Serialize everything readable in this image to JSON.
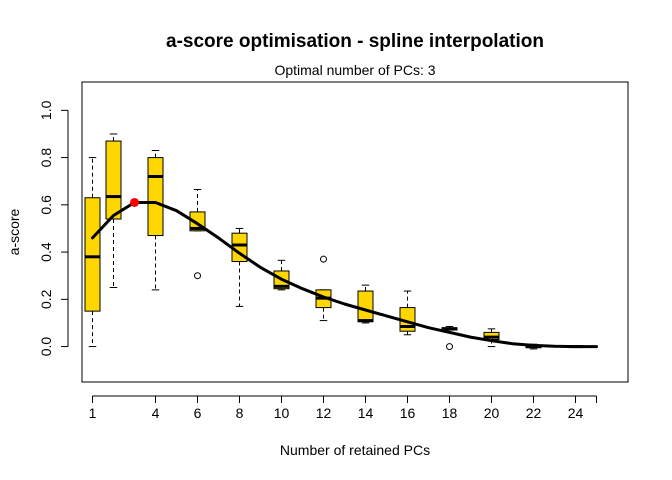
{
  "chart_data": {
    "type": "boxplot",
    "title": "a-score optimisation - spline interpolation",
    "subtitle": "Optimal number of PCs: 3",
    "xlabel": "Number of retained PCs",
    "ylabel": "a-score",
    "xlim": [
      0.5,
      26.5
    ],
    "ylim": [
      -0.15,
      1.12
    ],
    "x_ticks": [
      1,
      4,
      6,
      8,
      10,
      12,
      14,
      16,
      18,
      20,
      22,
      24
    ],
    "y_ticks": [
      0.0,
      0.2,
      0.4,
      0.6,
      0.8,
      1.0
    ],
    "y_tick_labels": [
      "0.0",
      "0.2",
      "0.4",
      "0.6",
      "0.8",
      "1.0"
    ],
    "box_color": "#FFD700",
    "boxes": [
      {
        "x": 1,
        "lower": 0.0,
        "q1": 0.15,
        "median": 0.38,
        "q3": 0.63,
        "upper": 0.8,
        "outliers": []
      },
      {
        "x": 2,
        "lower": 0.25,
        "q1": 0.54,
        "median": 0.635,
        "q3": 0.87,
        "upper": 0.9,
        "outliers": []
      },
      {
        "x": 4,
        "lower": 0.24,
        "q1": 0.47,
        "median": 0.72,
        "q3": 0.8,
        "upper": 0.83,
        "outliers": []
      },
      {
        "x": 6,
        "lower": 0.49,
        "q1": 0.49,
        "median": 0.5,
        "q3": 0.57,
        "upper": 0.665,
        "outliers": [
          0.3
        ]
      },
      {
        "x": 8,
        "lower": 0.17,
        "q1": 0.36,
        "median": 0.43,
        "q3": 0.48,
        "upper": 0.5,
        "outliers": []
      },
      {
        "x": 10,
        "lower": 0.24,
        "q1": 0.245,
        "median": 0.255,
        "q3": 0.32,
        "upper": 0.365,
        "outliers": []
      },
      {
        "x": 12,
        "lower": 0.11,
        "q1": 0.165,
        "median": 0.205,
        "q3": 0.24,
        "upper": 0.24,
        "outliers": [
          0.37
        ]
      },
      {
        "x": 14,
        "lower": 0.1,
        "q1": 0.105,
        "median": 0.11,
        "q3": 0.235,
        "upper": 0.26,
        "outliers": []
      },
      {
        "x": 16,
        "lower": 0.05,
        "q1": 0.065,
        "median": 0.085,
        "q3": 0.165,
        "upper": 0.235,
        "outliers": []
      },
      {
        "x": 18,
        "lower": 0.07,
        "q1": 0.07,
        "median": 0.075,
        "q3": 0.08,
        "upper": 0.085,
        "outliers": [
          0.0
        ]
      },
      {
        "x": 20,
        "lower": 0.0,
        "q1": 0.03,
        "median": 0.04,
        "q3": 0.06,
        "upper": 0.075,
        "outliers": []
      },
      {
        "x": 22,
        "lower": -0.01,
        "q1": -0.005,
        "median": 0.0,
        "q3": 0.005,
        "upper": 0.01,
        "outliers": []
      },
      {
        "x": 24,
        "lower": 0.0,
        "q1": 0.0,
        "median": 0.0,
        "q3": 0.0,
        "upper": 0.0,
        "outliers": []
      }
    ],
    "spline": {
      "color": "#000000",
      "x": [
        1,
        2,
        3,
        4,
        5,
        6,
        7,
        8,
        9,
        10,
        11,
        12,
        13,
        14,
        15,
        16,
        17,
        18,
        19,
        20,
        21,
        22,
        23,
        24,
        25
      ],
      "y": [
        0.46,
        0.555,
        0.61,
        0.61,
        0.575,
        0.52,
        0.46,
        0.395,
        0.335,
        0.285,
        0.245,
        0.21,
        0.18,
        0.155,
        0.13,
        0.105,
        0.08,
        0.06,
        0.04,
        0.025,
        0.012,
        0.005,
        0.001,
        0.0,
        0.0
      ]
    },
    "optimum": {
      "x": 3,
      "y": 0.61,
      "color": "#FF0000"
    }
  }
}
